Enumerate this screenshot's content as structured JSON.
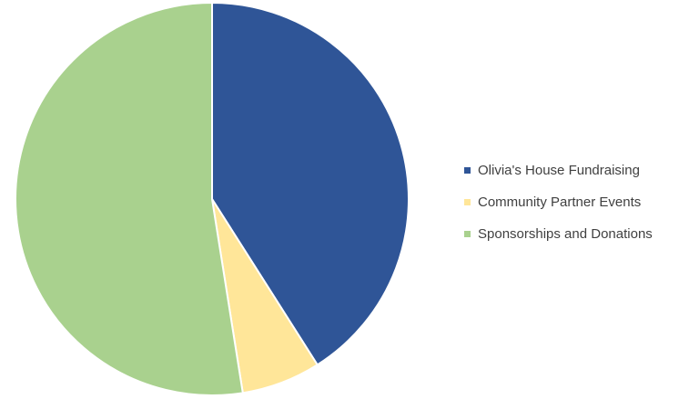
{
  "chart_data": {
    "type": "pie",
    "title": "",
    "series": [
      {
        "slices": [
          {
            "label": "Olivia's House Fundraising",
            "value": 41,
            "color": "#2f5597"
          },
          {
            "label": "Community Partner Events",
            "value": 6.5,
            "color": "#ffe699"
          },
          {
            "label": "Sponsorships and Donations",
            "value": 52.5,
            "color": "#a9d18e"
          }
        ]
      }
    ],
    "start_angle_deg": 0,
    "direction": "clockwise",
    "legend_position": "right",
    "slice_border_color": "#ffffff"
  }
}
